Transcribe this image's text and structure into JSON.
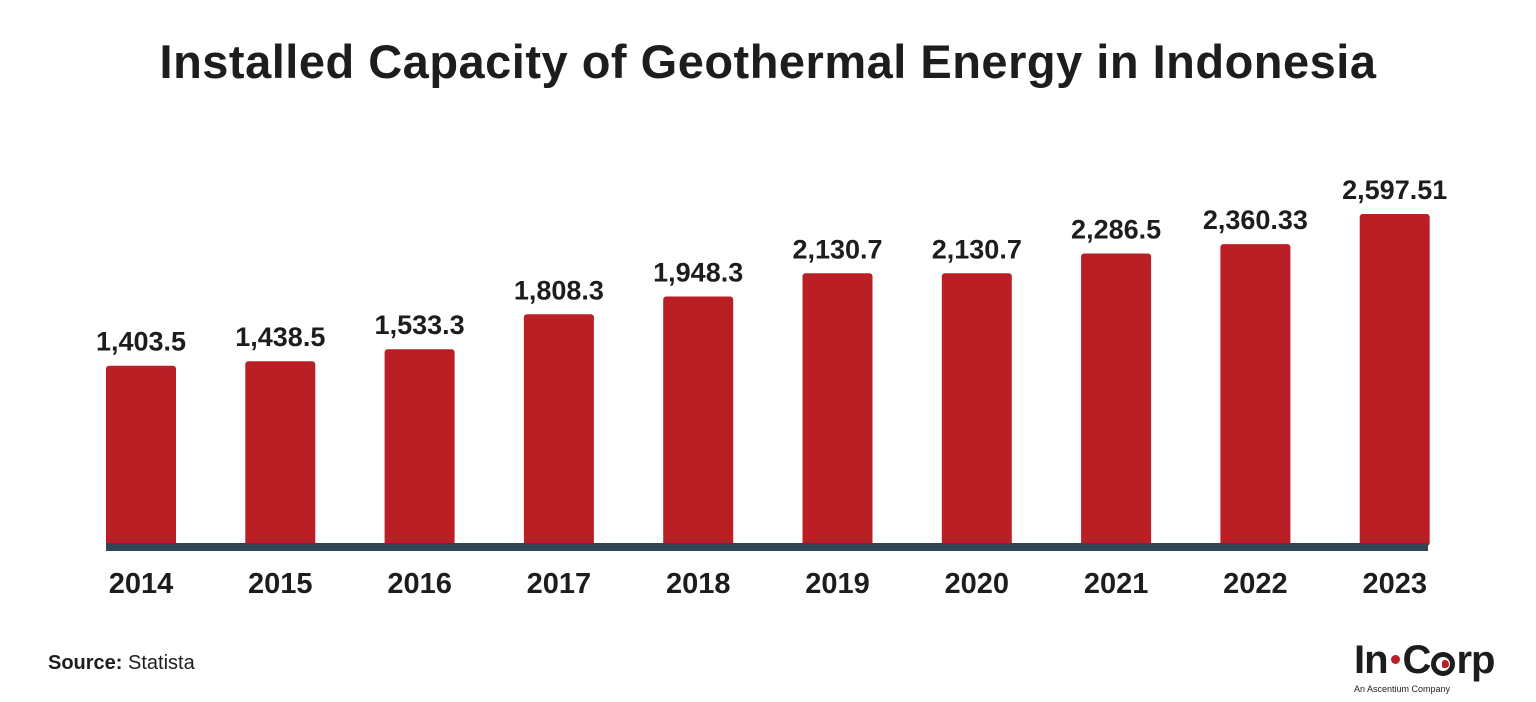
{
  "title": "Installed Capacity of Geothermal Energy in Indonesia",
  "source": {
    "key": "Source:",
    "value": "Statista"
  },
  "logo": {
    "name_start": "In",
    "name_c": "C",
    "name_end": "rp",
    "tagline": "An Ascentium Company"
  },
  "colors": {
    "bar": "#b91f24",
    "axis": "#2f4454",
    "text": "#1d1d1b"
  },
  "chart_data": {
    "type": "bar",
    "title": "Installed Capacity of Geothermal Energy in Indonesia",
    "categories": [
      "2014",
      "2015",
      "2016",
      "2017",
      "2018",
      "2019",
      "2020",
      "2021",
      "2022",
      "2023"
    ],
    "values": [
      1403.5,
      1438.5,
      1533.3,
      1808.3,
      1948.3,
      2130.7,
      2130.7,
      2286.5,
      2360.33,
      2597.51
    ],
    "value_labels": [
      "1,403.5",
      "1,438.5",
      "1,533.3",
      "1,808.3",
      "1,948.3",
      "2,130.7",
      "2,130.7",
      "2,286.5",
      "2,360.33",
      "2,597.51"
    ],
    "xlabel": "",
    "ylabel": "",
    "ylim": [
      0,
      2597.51
    ],
    "grid": false,
    "legend": "none"
  }
}
